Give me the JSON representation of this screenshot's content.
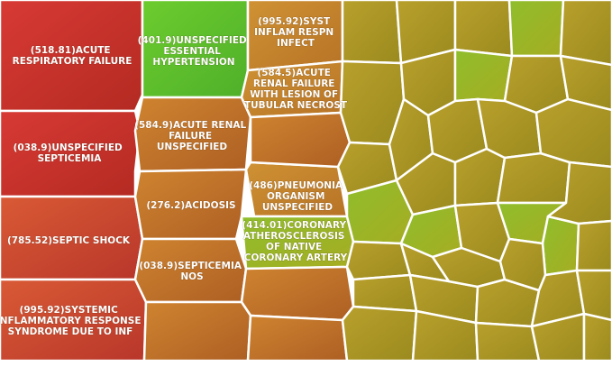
{
  "chart_data": {
    "type": "treemap",
    "colors": {
      "red": "#c9302c",
      "orange": "#c8782a",
      "olive": "#a49a22",
      "green": "#62c02a",
      "separator": "#ffffff"
    },
    "cells": [
      {
        "label": "(518.81)ACUTE RESPIRATORY FAILURE",
        "lines": [
          "(518.81)ACUTE",
          "RESPIRATORY FAILURE"
        ],
        "color": "red"
      },
      {
        "label": "(038.9)UNSPECIFIED SEPTICEMIA",
        "lines": [
          "(038.9)UNSPECIFIED",
          "SEPTICEMIA"
        ],
        "color": "red"
      },
      {
        "label": "(785.52)SEPTIC SHOCK",
        "lines": [
          "(785.52)SEPTIC SHOCK"
        ],
        "color": "orange-red"
      },
      {
        "label": "(995.92)SYSTEMIC INFLAMMATORY RESPONSE SYNDROME DUE TO INF",
        "lines": [
          "(995.92)SYSTEMIC",
          "INFLAMMATORY RESPONSE",
          "SYNDROME DUE TO INF"
        ],
        "color": "orange-red"
      },
      {
        "label": "(401.9)UNSPECIFIED ESSENTIAL HYPERTENSION",
        "lines": [
          "(401.9)UNSPECIFIED",
          "ESSENTIAL",
          "HYPERTENSION"
        ],
        "color": "green"
      },
      {
        "label": "(584.9)ACUTE RENAL FAILURE UNSPECIFIED",
        "lines": [
          "(584.9)ACUTE RENAL",
          "FAILURE",
          "UNSPECIFIED"
        ],
        "color": "orange"
      },
      {
        "label": "(276.2)ACIDOSIS",
        "lines": [
          "(276.2)ACIDOSIS"
        ],
        "color": "orange"
      },
      {
        "label": "(038.9)SEPTICEMIA NOS",
        "lines": [
          "(038.9)SEPTICEMIA",
          "NOS"
        ],
        "color": "orange"
      },
      {
        "label": "(995.92)SYST INFLAM RESPN INFECT",
        "lines": [
          "(995.92)SYST",
          "INFLAM RESPN",
          "INFECT"
        ],
        "color": "orange"
      },
      {
        "label": "(584.5)ACUTE RENAL FAILURE WITH LESION OF TUBULAR NECROST",
        "lines": [
          "(584.5)ACUTE",
          "RENAL FAILURE",
          "WITH LESION OF",
          "TUBULAR NECROST"
        ],
        "color": "orange"
      },
      {
        "label": "(486)PNEUMONIA ORGANISM UNSPECIFIED",
        "lines": [
          "(486)PNEUMONIA",
          "ORGANISM",
          "UNSPECIFIED"
        ],
        "color": "orange"
      },
      {
        "label": "(414.01)CORONARY ATHEROSCLEROSIS OF NATIVE CORONARY ARTERY",
        "lines": [
          "(414.01)CORONARY",
          "ATHEROSCLEROSIS",
          "OF NATIVE",
          "CORONARY ARTERY"
        ],
        "color": "yellow-green"
      }
    ]
  }
}
